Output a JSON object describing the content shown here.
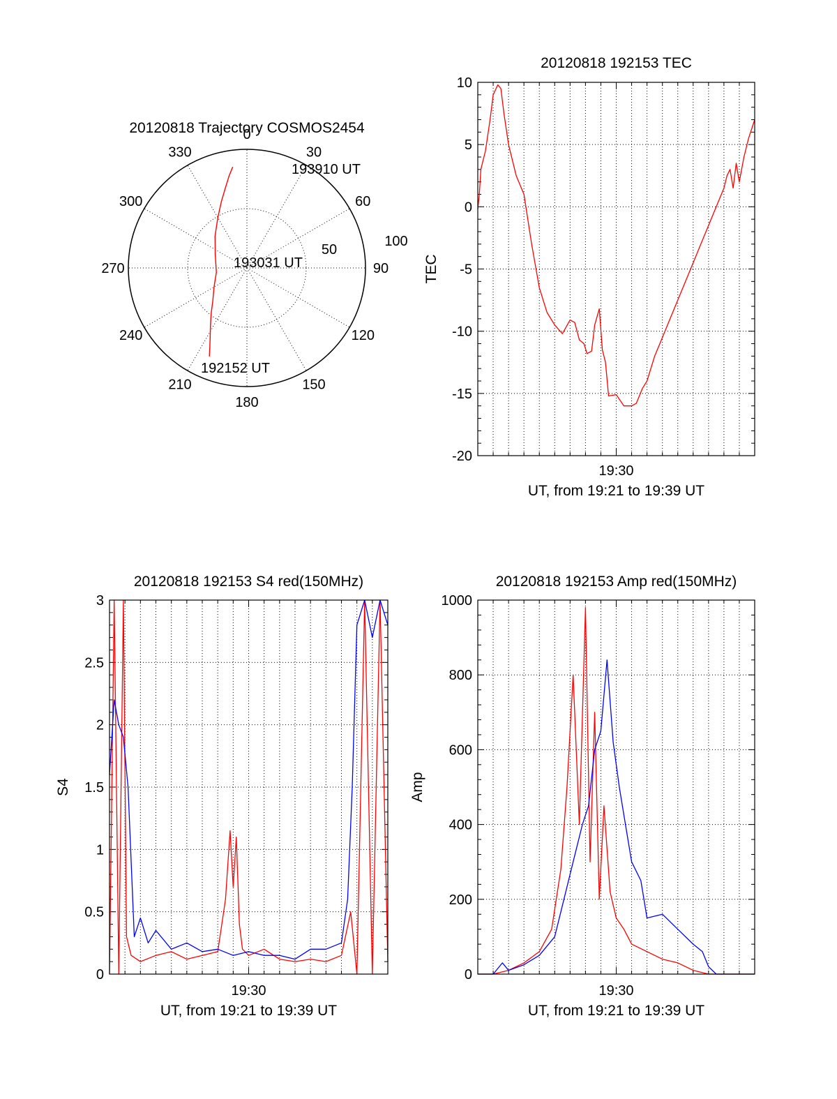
{
  "colors": {
    "red": "#ff0000",
    "blue": "#0000ff",
    "axis": "#000000",
    "grid": "#000000"
  },
  "polar": {
    "title": "20120818 Trajectory COSMOS2454",
    "azimuth_labels": [
      "0",
      "30",
      "60",
      "90",
      "120",
      "150",
      "180",
      "210",
      "240",
      "270",
      "300",
      "330"
    ],
    "radial_labels": [
      "50",
      "100"
    ],
    "time_labels": {
      "start": "192152 UT",
      "middle": "193031 UT",
      "end": "193910 UT"
    },
    "series_color": "#ff0000"
  },
  "chart_data": [
    {
      "id": "polar-trajectory",
      "type": "scatter",
      "coordinates": "polar",
      "title": "20120818 Trajectory COSMOS2454",
      "r_range": [
        0,
        100
      ],
      "grid": true,
      "series": [
        {
          "color": "#ff0000",
          "points_az_deg_r": [
            [
              203,
              81
            ],
            [
              205,
              74
            ],
            [
              208,
              66
            ],
            [
              212,
              58
            ],
            [
              218,
              49
            ],
            [
              226,
              40
            ],
            [
              240,
              32
            ],
            [
              262,
              26
            ],
            [
              293,
              29
            ],
            [
              315,
              38
            ],
            [
              330,
              49
            ],
            [
              339,
              60
            ],
            [
              345,
              70
            ],
            [
              349,
              79
            ],
            [
              352,
              86
            ]
          ]
        }
      ]
    },
    {
      "id": "tec",
      "type": "line",
      "title": "20120818 192153 TEC",
      "xlabel": "UT, from 19:21 to 19:39 UT",
      "ylabel": "TEC",
      "x_tick_labels": [
        "19:30"
      ],
      "y_ticks": [
        10,
        5,
        0,
        -5,
        -10,
        -15,
        -20
      ],
      "y_tick_labels": [
        "10",
        "5",
        "0",
        "-5",
        "-10",
        "-15",
        "-20"
      ],
      "xlim": [
        0,
        18
      ],
      "ylim": [
        -20,
        10
      ],
      "grid": true,
      "series": [
        {
          "color": "#ff0000",
          "x": [
            0.0,
            0.1,
            0.2,
            0.5,
            0.8,
            1.0,
            1.3,
            1.5,
            1.7,
            2.0,
            2.5,
            3.0,
            3.5,
            4.0,
            4.5,
            5.0,
            5.5,
            6.0,
            6.3,
            6.6,
            6.9,
            7.1,
            7.4,
            7.6,
            7.9,
            8.1,
            8.3,
            8.5,
            9.0,
            9.5,
            10.0,
            10.3,
            10.7,
            11.0,
            11.5,
            12.0,
            12.5,
            13.0,
            13.5,
            14.0,
            14.5,
            15.0,
            15.5,
            16.0,
            16.2,
            16.4,
            16.6,
            16.8,
            17.0,
            17.3,
            17.6,
            18.0
          ],
          "y": [
            -0.2,
            1.0,
            3.0,
            4.5,
            7.0,
            9.0,
            9.8,
            9.5,
            7.5,
            5.0,
            2.5,
            1.0,
            -3.0,
            -6.5,
            -8.5,
            -9.5,
            -10.2,
            -9.1,
            -9.3,
            -10.7,
            -11.0,
            -11.8,
            -11.6,
            -9.5,
            -8.2,
            -11.5,
            -12.5,
            -15.2,
            -15.1,
            -16.0,
            -16.0,
            -15.8,
            -14.6,
            -14.0,
            -12.0,
            -10.5,
            -9.0,
            -7.5,
            -6.0,
            -4.5,
            -3.0,
            -1.5,
            0.0,
            1.5,
            2.5,
            3.0,
            1.5,
            3.5,
            2.0,
            4.0,
            5.5,
            7.0
          ]
        }
      ]
    },
    {
      "id": "s4",
      "type": "line",
      "title": "20120818 192153 S4 red(150MHz)",
      "xlabel": "UT, from 19:21 to 19:39 UT",
      "ylabel": "S4",
      "x_tick_labels": [
        "19:30"
      ],
      "y_ticks": [
        3,
        2.5,
        2,
        1.5,
        1,
        0.5,
        0
      ],
      "y_tick_labels": [
        "3",
        "2.5",
        "2",
        "1.5",
        "1",
        "0.5",
        "0"
      ],
      "xlim": [
        0,
        18
      ],
      "ylim": [
        0,
        3
      ],
      "grid": true,
      "series": [
        {
          "color": "#ff0000",
          "x": [
            0.0,
            0.3,
            0.6,
            0.9,
            1.1,
            1.4,
            2.0,
            3.0,
            4.0,
            5.0,
            6.0,
            7.0,
            7.5,
            7.8,
            8.0,
            8.2,
            8.4,
            8.6,
            9.0,
            10.0,
            11.0,
            12.0,
            13.0,
            14.0,
            15.0,
            15.6,
            16.0,
            16.5,
            17.0,
            17.5,
            18.0
          ],
          "y": [
            0.0,
            3.0,
            0.0,
            3.0,
            0.3,
            0.15,
            0.1,
            0.15,
            0.18,
            0.12,
            0.15,
            0.18,
            0.6,
            1.15,
            0.7,
            1.1,
            0.4,
            0.2,
            0.15,
            0.2,
            0.12,
            0.1,
            0.12,
            0.1,
            0.15,
            0.5,
            0.0,
            3.0,
            0.0,
            3.0,
            0.1
          ]
        },
        {
          "color": "#0000ff",
          "x": [
            0.0,
            0.3,
            0.6,
            0.9,
            1.2,
            1.6,
            2.0,
            2.5,
            3.0,
            4.0,
            5.0,
            6.0,
            7.0,
            8.0,
            9.0,
            10.0,
            11.0,
            12.0,
            13.0,
            14.0,
            15.0,
            15.4,
            15.7,
            16.0,
            16.5,
            17.0,
            17.5,
            18.0
          ],
          "y": [
            1.6,
            2.2,
            2.0,
            1.9,
            1.5,
            0.3,
            0.45,
            0.25,
            0.35,
            0.2,
            0.25,
            0.18,
            0.2,
            0.15,
            0.18,
            0.15,
            0.15,
            0.12,
            0.2,
            0.2,
            0.25,
            0.6,
            1.5,
            2.8,
            3.0,
            2.7,
            3.0,
            2.8
          ]
        }
      ]
    },
    {
      "id": "amp",
      "type": "line",
      "title": "20120818 192153 Amp red(150MHz)",
      "xlabel": "UT, from 19:21 to 19:39 UT",
      "ylabel": "Amp",
      "x_tick_labels": [
        "19:30"
      ],
      "y_ticks": [
        1000,
        800,
        600,
        400,
        200,
        0
      ],
      "y_tick_labels": [
        "1000",
        "800",
        "600",
        "400",
        "200",
        "0"
      ],
      "xlim": [
        0,
        18
      ],
      "ylim": [
        0,
        1000
      ],
      "grid": true,
      "series": [
        {
          "color": "#ff0000",
          "x": [
            0.0,
            1.0,
            2.0,
            3.0,
            4.0,
            4.8,
            5.4,
            5.8,
            6.2,
            6.6,
            7.0,
            7.3,
            7.6,
            7.9,
            8.2,
            8.6,
            9.0,
            9.5,
            10.0,
            11.0,
            12.0,
            13.0,
            14.0,
            15.0,
            15.5,
            16.0,
            17.0,
            18.0
          ],
          "y": [
            0,
            0,
            10,
            30,
            60,
            120,
            280,
            500,
            800,
            400,
            980,
            300,
            700,
            200,
            450,
            220,
            150,
            120,
            80,
            60,
            40,
            30,
            10,
            0,
            0,
            0,
            0,
            0
          ]
        },
        {
          "color": "#0000ff",
          "x": [
            0.0,
            1.0,
            1.6,
            2.0,
            3.0,
            4.0,
            5.0,
            5.6,
            6.2,
            6.8,
            7.2,
            7.6,
            8.0,
            8.4,
            8.8,
            9.2,
            9.6,
            10.0,
            10.6,
            11.0,
            12.0,
            13.0,
            14.0,
            14.6,
            15.0,
            15.5,
            16.0,
            17.0,
            18.0
          ],
          "y": [
            0,
            0,
            30,
            10,
            25,
            50,
            100,
            200,
            300,
            400,
            450,
            600,
            650,
            840,
            620,
            500,
            400,
            300,
            250,
            150,
            160,
            120,
            80,
            60,
            20,
            0,
            0,
            0,
            0
          ]
        }
      ]
    }
  ]
}
